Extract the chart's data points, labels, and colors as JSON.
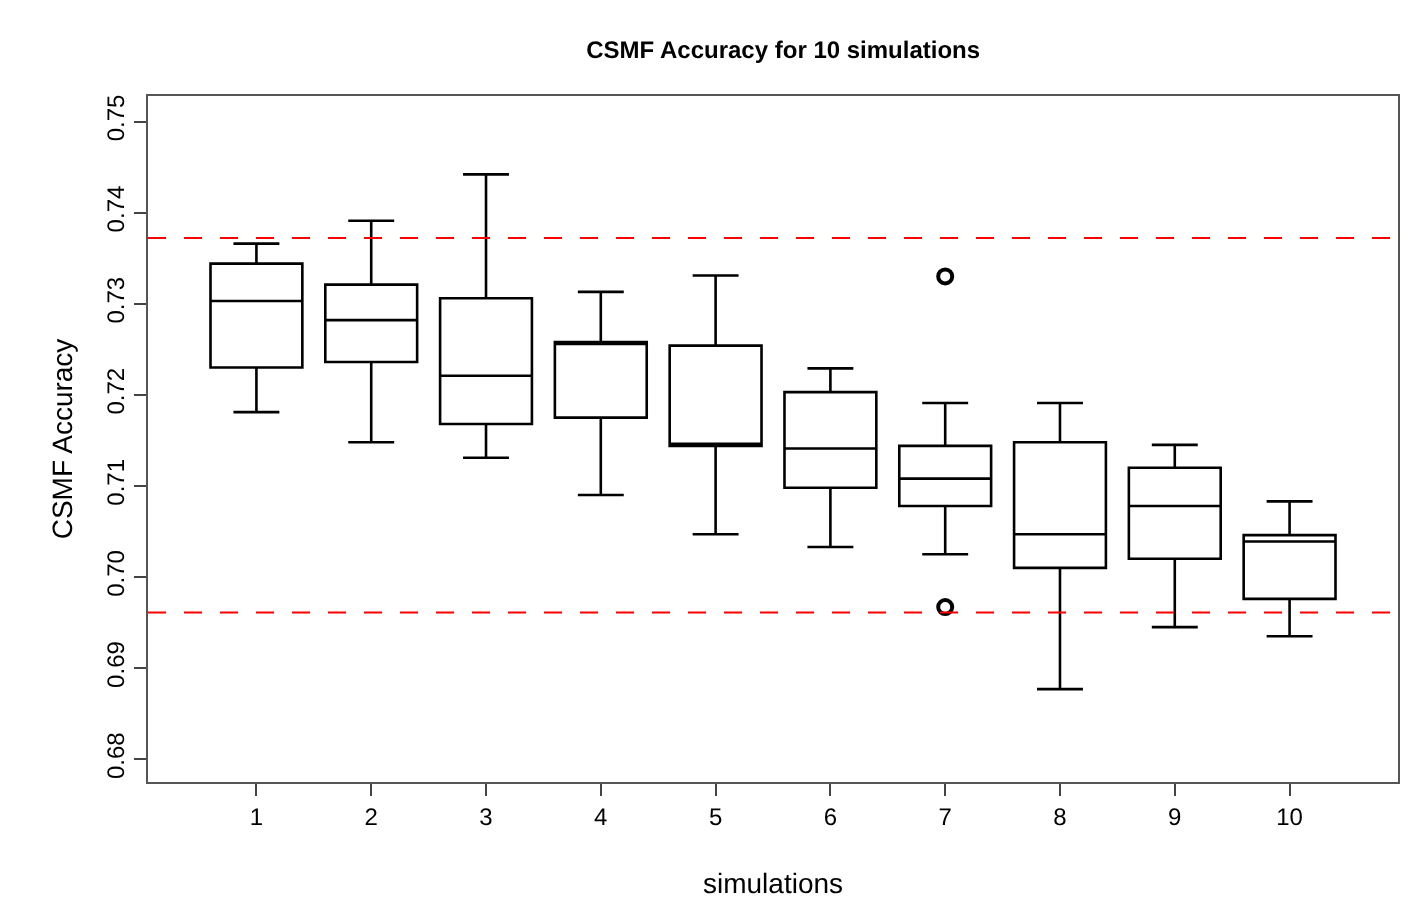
{
  "chart_data": {
    "type": "box",
    "title": "CSMF Accuracy for 10 simulations",
    "xlabel": "simulations",
    "ylabel": "CSMF Accuracy",
    "categories": [
      "1",
      "2",
      "3",
      "4",
      "5",
      "6",
      "7",
      "8",
      "9",
      "10"
    ],
    "boxes": [
      {
        "low": 0.7181,
        "q1": 0.723,
        "median": 0.7303,
        "q3": 0.7344,
        "high": 0.7366
      },
      {
        "low": 0.7148,
        "q1": 0.7236,
        "median": 0.7282,
        "q3": 0.7321,
        "high": 0.7391
      },
      {
        "low": 0.7131,
        "q1": 0.7168,
        "median": 0.7221,
        "q3": 0.7306,
        "high": 0.7442
      },
      {
        "low": 0.709,
        "q1": 0.7175,
        "median": 0.7258,
        "q3": 0.7258,
        "high": 0.7313
      },
      {
        "low": 0.7047,
        "q1": 0.7144,
        "median": 0.7144,
        "q3": 0.7254,
        "high": 0.7331
      },
      {
        "low": 0.7033,
        "q1": 0.7098,
        "median": 0.7141,
        "q3": 0.7203,
        "high": 0.7229
      },
      {
        "low": 0.7025,
        "q1": 0.7078,
        "median": 0.7108,
        "q3": 0.7144,
        "high": 0.7191,
        "outliers": [
          0.733,
          0.6967
        ]
      },
      {
        "low": 0.6877,
        "q1": 0.701,
        "median": 0.7047,
        "q3": 0.7148,
        "high": 0.7191
      },
      {
        "low": 0.6945,
        "q1": 0.702,
        "median": 0.7078,
        "q3": 0.712,
        "high": 0.7145
      },
      {
        "low": 0.6935,
        "q1": 0.6976,
        "median": 0.7039,
        "q3": 0.7046,
        "high": 0.7083
      }
    ],
    "color": "#000000",
    "ylim": [
      0.6775,
      0.7528
    ],
    "yticks": [
      {
        "value": 0.68,
        "label": "0.68"
      },
      {
        "value": 0.69,
        "label": "0.69"
      },
      {
        "value": 0.7,
        "label": "0.70"
      },
      {
        "value": 0.71,
        "label": "0.71"
      },
      {
        "value": 0.72,
        "label": "0.72"
      },
      {
        "value": 0.73,
        "label": "0.73"
      },
      {
        "value": 0.74,
        "label": "0.74"
      },
      {
        "value": 0.75,
        "label": "0.75"
      }
    ],
    "ref_lines": [
      {
        "axis": "y",
        "value": 0.7372,
        "color": "#ff0000",
        "line_style": "dashed"
      },
      {
        "axis": "y",
        "value": 0.6961,
        "color": "#ff0000",
        "line_style": "dashed"
      }
    ],
    "grid": false
  }
}
